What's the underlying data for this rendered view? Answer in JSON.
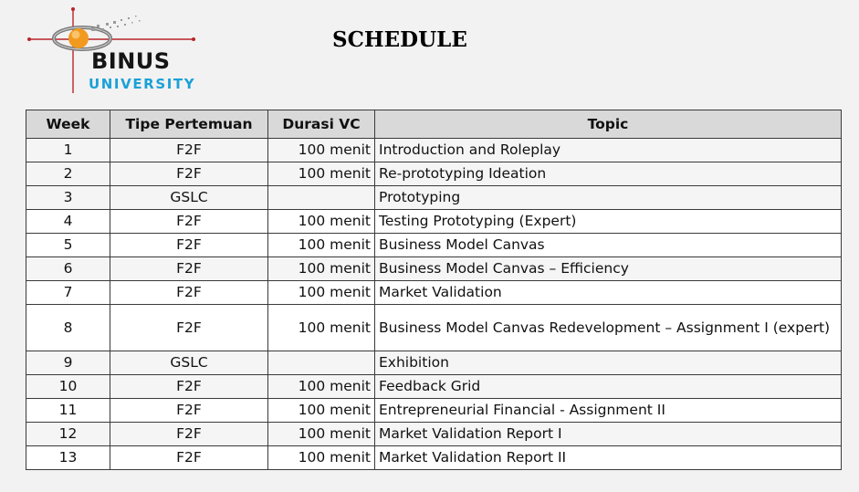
{
  "logo": {
    "name": "BINUS",
    "subname": "UNIVERSITY"
  },
  "title": "SCHEDULE",
  "table": {
    "headers": {
      "week": "Week",
      "tipe": "Tipe Pertemuan",
      "durasi": "Durasi VC",
      "topic": "Topic"
    },
    "rows": [
      {
        "week": "1",
        "tipe": "F2F",
        "durasi": "100 menit",
        "topic": "Introduction and Roleplay"
      },
      {
        "week": "2",
        "tipe": "F2F",
        "durasi": "100 menit",
        "topic": "Re-prototyping Ideation"
      },
      {
        "week": "3",
        "tipe": "GSLC",
        "durasi": "",
        "topic": "Prototyping"
      },
      {
        "week": "4",
        "tipe": "F2F",
        "durasi": "100 menit",
        "topic": "Testing Prototyping (Expert)"
      },
      {
        "week": "5",
        "tipe": "F2F",
        "durasi": "100 menit",
        "topic": "Business Model Canvas"
      },
      {
        "week": "6",
        "tipe": "F2F",
        "durasi": "100 menit",
        "topic": "Business Model Canvas – Efficiency"
      },
      {
        "week": "7",
        "tipe": "F2F",
        "durasi": "100 menit",
        "topic": "Market Validation"
      },
      {
        "week": "8",
        "tipe": "F2F",
        "durasi": "100 menit",
        "topic": "Business Model Canvas Redevelopment – Assignment I (expert)"
      },
      {
        "week": "9",
        "tipe": "GSLC",
        "durasi": "",
        "topic": "Exhibition"
      },
      {
        "week": "10",
        "tipe": "F2F",
        "durasi": "100 menit",
        "topic": "Feedback Grid"
      },
      {
        "week": "11",
        "tipe": "F2F",
        "durasi": "100 menit",
        "topic": "Entrepreneurial Financial - Assignment II"
      },
      {
        "week": "12",
        "tipe": "F2F",
        "durasi": "100 menit",
        "topic": "Market Validation Report I"
      },
      {
        "week": "13",
        "tipe": "F2F",
        "durasi": "100 menit",
        "topic": "Market Validation Report II"
      }
    ]
  }
}
